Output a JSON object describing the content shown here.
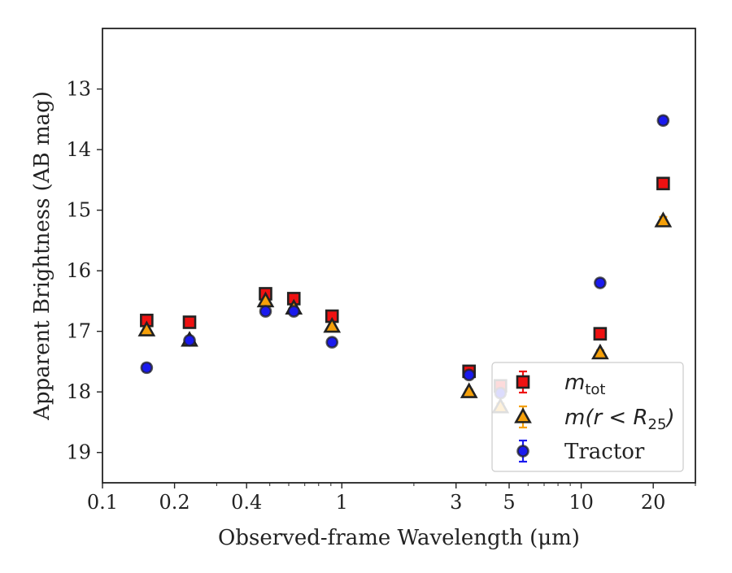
{
  "chart_data": {
    "type": "scatter",
    "xlabel": "Observed-frame Wavelength (μm)",
    "ylabel": "Apparent Brightness (AB mag)",
    "x_scale": "log",
    "xlim": [
      0.1,
      30
    ],
    "ylim": [
      19.5,
      12.0
    ],
    "y_inverted": true,
    "x_ticks": [
      {
        "value": 0.1,
        "label": "0.1"
      },
      {
        "value": 0.2,
        "label": "0.2"
      },
      {
        "value": 0.4,
        "label": "0.4"
      },
      {
        "value": 1,
        "label": "1"
      },
      {
        "value": 3,
        "label": "3"
      },
      {
        "value": 5,
        "label": "5"
      },
      {
        "value": 10,
        "label": "10"
      },
      {
        "value": 20,
        "label": "20"
      }
    ],
    "y_ticks": [
      {
        "value": 13,
        "label": "13"
      },
      {
        "value": 14,
        "label": "14"
      },
      {
        "value": 15,
        "label": "15"
      },
      {
        "value": 16,
        "label": "16"
      },
      {
        "value": 17,
        "label": "17"
      },
      {
        "value": 18,
        "label": "18"
      },
      {
        "value": 19,
        "label": "19"
      }
    ],
    "legend_position": "lower-right",
    "grid": false,
    "series": [
      {
        "name": "m_tot",
        "legend_main": "m",
        "legend_sub": "tot",
        "marker": "square",
        "color": "#ee1111",
        "edge_color": "#222222",
        "err_color": "#ee1111",
        "points": [
          {
            "x": 0.153,
            "y": 16.82,
            "err": 0.04
          },
          {
            "x": 0.231,
            "y": 16.85,
            "err": 0.04
          },
          {
            "x": 0.48,
            "y": 16.38,
            "err": 0.03
          },
          {
            "x": 0.63,
            "y": 16.46,
            "err": 0.03
          },
          {
            "x": 0.91,
            "y": 16.75,
            "err": 0.03
          },
          {
            "x": 3.4,
            "y": 17.66,
            "err": 0.04
          },
          {
            "x": 4.6,
            "y": 17.9,
            "err": 0.05
          },
          {
            "x": 12.0,
            "y": 17.04,
            "err": 0.04
          },
          {
            "x": 22.0,
            "y": 14.56,
            "err": 0.05
          }
        ]
      },
      {
        "name": "m(r < R25)",
        "legend_main": "m(r < R",
        "legend_sub": "25",
        "legend_tail": ")",
        "marker": "triangle",
        "color": "#f5a00a",
        "edge_color": "#222222",
        "err_color": "#f5a00a",
        "points": [
          {
            "x": 0.153,
            "y": 16.98,
            "err": 0.04
          },
          {
            "x": 0.231,
            "y": 17.15,
            "err": 0.04
          },
          {
            "x": 0.48,
            "y": 16.5,
            "err": 0.03
          },
          {
            "x": 0.63,
            "y": 16.62,
            "err": 0.03
          },
          {
            "x": 0.91,
            "y": 16.92,
            "err": 0.03
          },
          {
            "x": 3.4,
            "y": 18.0,
            "err": 0.04
          },
          {
            "x": 4.6,
            "y": 18.25,
            "err": 0.06
          },
          {
            "x": 12.0,
            "y": 17.36,
            "err": 0.05
          },
          {
            "x": 22.0,
            "y": 15.18,
            "err": 0.07
          }
        ]
      },
      {
        "name": "Tractor",
        "legend_main": "Tractor",
        "marker": "circle",
        "color": "#1a1aee",
        "edge_color": "#222222",
        "err_color": "#1a1aee",
        "points": [
          {
            "x": 0.153,
            "y": 17.6,
            "err": 0.06
          },
          {
            "x": 0.231,
            "y": 17.15,
            "err": 0.05
          },
          {
            "x": 0.48,
            "y": 16.67,
            "err": 0.04
          },
          {
            "x": 0.63,
            "y": 16.67,
            "err": 0.04
          },
          {
            "x": 0.91,
            "y": 17.18,
            "err": 0.05
          },
          {
            "x": 3.4,
            "y": 17.72,
            "err": 0.05
          },
          {
            "x": 4.6,
            "y": 18.02,
            "err": 0.05
          },
          {
            "x": 12.0,
            "y": 16.2,
            "err": 0.05
          },
          {
            "x": 22.0,
            "y": 13.52,
            "err": 0.06
          }
        ]
      }
    ]
  }
}
